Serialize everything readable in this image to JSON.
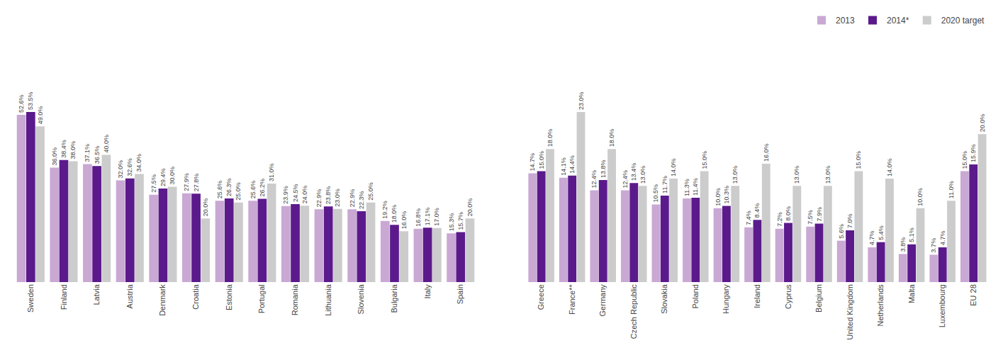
{
  "chart_data": [
    {
      "type": "bar",
      "categories": [
        "Sweden",
        "Finland",
        "Latvia",
        "Austria",
        "Denmark",
        "Croatia",
        "Estonia",
        "Portugal",
        "Romania",
        "Lithuania",
        "Slovenia",
        "Bulgaria",
        "Italy",
        "Spain"
      ],
      "series": [
        {
          "name": "2013",
          "color": "#c9a8d4",
          "values": [
            52.6,
            36.0,
            37.1,
            32.0,
            27.5,
            27.9,
            25.6,
            25.6,
            23.9,
            22.9,
            22.9,
            19.2,
            16.8,
            15.3
          ],
          "value_labels": [
            "52.6%",
            "36.0%",
            "37.1%",
            "32.0%",
            "27.5%",
            "27.9%",
            "25.6%",
            "25.6%",
            "23.9%",
            "22.9%",
            "22.9%",
            "19.2%",
            "16.8%",
            "15.3%"
          ]
        },
        {
          "name": "2014*",
          "color": "#5b1a8b",
          "values": [
            53.5,
            38.4,
            36.5,
            32.6,
            29.4,
            27.8,
            26.3,
            26.2,
            24.5,
            23.8,
            22.3,
            18.0,
            17.1,
            15.7
          ],
          "value_labels": [
            "53.5%",
            "38.4%",
            "36.5%",
            "32.6%",
            "29.4%",
            "27.8%",
            "26.3%",
            "26.2%",
            "24.5%",
            "23.8%",
            "22.3%",
            "18.0%",
            "17.1%",
            "15.7%"
          ]
        },
        {
          "name": "2020 target",
          "color": "#cccccc",
          "values": [
            49.0,
            38.0,
            40.0,
            34.0,
            30.0,
            20.0,
            25.0,
            31.0,
            24.0,
            23.0,
            25.0,
            16.0,
            17.0,
            20.0
          ],
          "value_labels": [
            "49.0%",
            "38.0%",
            "40.0%",
            "34.0%",
            "30.0%",
            "20.0%",
            "25.0%",
            "31.0%",
            "24.0%",
            "23.0%",
            "25.0%",
            "16.0%",
            "17.0%",
            "20.0%"
          ]
        }
      ],
      "ylim": [
        0,
        77.575
      ],
      "grid": false,
      "data_labels": true,
      "tick_labels": "x"
    },
    {
      "type": "bar",
      "categories": [
        "Greece",
        "France**",
        "Germany",
        "Czech Republic",
        "Slovakia",
        "Poland",
        "Hungary",
        "Ireland",
        "Cyprus",
        "Belgium",
        "United Kingdom",
        "Netherlands",
        "Malta",
        "Luxembourg",
        "EU 28"
      ],
      "series": [
        {
          "name": "2013",
          "color": "#c9a8d4",
          "values": [
            14.7,
            14.1,
            12.4,
            12.4,
            10.5,
            11.3,
            10.0,
            7.4,
            7.2,
            7.5,
            5.6,
            4.7,
            3.8,
            3.7,
            15.0
          ],
          "value_labels": [
            "14.7%",
            "14.1%",
            "12.4%",
            "12.4%",
            "10.5%",
            "11.3%",
            "10.0%",
            "7.4%",
            "7.2%",
            "7.5%",
            "5.6%",
            "4.7%",
            "3.8%",
            "3.7%",
            "15.0%"
          ]
        },
        {
          "name": "2014*",
          "color": "#5b1a8b",
          "values": [
            15.0,
            14.4,
            13.8,
            13.4,
            11.7,
            11.4,
            10.3,
            8.4,
            8.0,
            7.9,
            7.0,
            5.4,
            5.1,
            4.7,
            15.9
          ],
          "value_labels": [
            "15.0%",
            "14.4%",
            "13.8%",
            "13.4%",
            "11.7%",
            "11.4%",
            "10.3%",
            "8.4%",
            "8.0%",
            "7.9%",
            "7.0%",
            "5.4%",
            "5.1%",
            "4.7%",
            "15.9%"
          ]
        },
        {
          "name": "2020 target",
          "color": "#cccccc",
          "values": [
            18.0,
            23.0,
            18.0,
            13.0,
            14.0,
            15.0,
            13.0,
            16.0,
            13.0,
            13.0,
            15.0,
            14.0,
            10.0,
            11.0,
            20.0
          ],
          "value_labels": [
            "18.0%",
            "23.0%",
            "18.0%",
            "13.0%",
            "14.0%",
            "15.0%",
            "13.0%",
            "16.0%",
            "13.0%",
            "13.0%",
            "15.0%",
            "14.0%",
            "10.0%",
            "11.0%",
            "20.0%"
          ]
        }
      ],
      "ylim": [
        0,
        33.35
      ],
      "grid": false,
      "data_labels": true,
      "tick_labels": "x",
      "legend": "upper right"
    }
  ]
}
